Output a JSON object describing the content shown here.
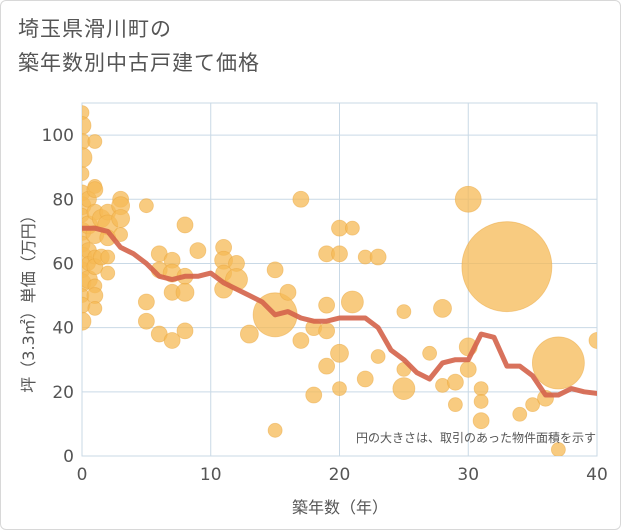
{
  "title_lines": [
    "埼玉県滑川町の",
    "築年数別中古戸建て価格"
  ],
  "chart_data": {
    "type": "scatter",
    "xlabel": "築年数（年）",
    "ylabel": "坪（3.3㎡）単価（万円）",
    "xlim": [
      0,
      40
    ],
    "ylim": [
      0,
      110
    ],
    "xticks": [
      0,
      10,
      20,
      30,
      40
    ],
    "yticks": [
      0,
      20,
      40,
      60,
      80,
      100
    ],
    "grid": true,
    "annotation": "円の大きさは、取引のあった物件面積を示す",
    "colors": {
      "bubble": "#f5b955",
      "line": "#d4634a",
      "grid": "#c9d9e6",
      "axis_text": "#555555"
    },
    "scatter_points": [
      {
        "x": 0,
        "y": 107,
        "r": 7
      },
      {
        "x": 0,
        "y": 103,
        "r": 9
      },
      {
        "x": 0,
        "y": 98,
        "r": 8
      },
      {
        "x": 0,
        "y": 93,
        "r": 10
      },
      {
        "x": 0,
        "y": 88,
        "r": 7
      },
      {
        "x": 0,
        "y": 82,
        "r": 8
      },
      {
        "x": 0,
        "y": 78,
        "r": 9
      },
      {
        "x": 0,
        "y": 75,
        "r": 7
      },
      {
        "x": 0,
        "y": 70,
        "r": 9
      },
      {
        "x": 0,
        "y": 66,
        "r": 8
      },
      {
        "x": 0,
        "y": 62,
        "r": 10
      },
      {
        "x": 0,
        "y": 58,
        "r": 8
      },
      {
        "x": 0,
        "y": 54,
        "r": 9
      },
      {
        "x": 0,
        "y": 50,
        "r": 7
      },
      {
        "x": 0,
        "y": 47,
        "r": 8
      },
      {
        "x": 0,
        "y": 42,
        "r": 9
      },
      {
        "x": 0.5,
        "y": 80,
        "r": 8
      },
      {
        "x": 0.5,
        "y": 72,
        "r": 9
      },
      {
        "x": 0.5,
        "y": 64,
        "r": 8
      },
      {
        "x": 0.5,
        "y": 60,
        "r": 7
      },
      {
        "x": 0.5,
        "y": 55,
        "r": 9
      },
      {
        "x": 1,
        "y": 98,
        "r": 7
      },
      {
        "x": 1,
        "y": 84,
        "r": 7
      },
      {
        "x": 1,
        "y": 83,
        "r": 8
      },
      {
        "x": 1,
        "y": 76,
        "r": 8
      },
      {
        "x": 1,
        "y": 69,
        "r": 9
      },
      {
        "x": 1,
        "y": 62,
        "r": 7
      },
      {
        "x": 1,
        "y": 59,
        "r": 8
      },
      {
        "x": 1,
        "y": 53,
        "r": 7
      },
      {
        "x": 1,
        "y": 50,
        "r": 8
      },
      {
        "x": 1,
        "y": 46,
        "r": 7
      },
      {
        "x": 1.5,
        "y": 74,
        "r": 9
      },
      {
        "x": 1.5,
        "y": 62,
        "r": 8
      },
      {
        "x": 2,
        "y": 76,
        "r": 8
      },
      {
        "x": 2,
        "y": 72,
        "r": 10
      },
      {
        "x": 2,
        "y": 68,
        "r": 8
      },
      {
        "x": 2,
        "y": 62,
        "r": 7
      },
      {
        "x": 2,
        "y": 57,
        "r": 7
      },
      {
        "x": 3,
        "y": 80,
        "r": 8
      },
      {
        "x": 3,
        "y": 78,
        "r": 9
      },
      {
        "x": 3,
        "y": 74,
        "r": 9
      },
      {
        "x": 3,
        "y": 69,
        "r": 7
      },
      {
        "x": 5,
        "y": 78,
        "r": 7
      },
      {
        "x": 5,
        "y": 48,
        "r": 8
      },
      {
        "x": 5,
        "y": 42,
        "r": 8
      },
      {
        "x": 6,
        "y": 63,
        "r": 8
      },
      {
        "x": 6,
        "y": 58,
        "r": 8
      },
      {
        "x": 6,
        "y": 38,
        "r": 8
      },
      {
        "x": 7,
        "y": 61,
        "r": 8
      },
      {
        "x": 7,
        "y": 57,
        "r": 9
      },
      {
        "x": 7,
        "y": 51,
        "r": 8
      },
      {
        "x": 7,
        "y": 36,
        "r": 8
      },
      {
        "x": 8,
        "y": 72,
        "r": 8
      },
      {
        "x": 8,
        "y": 56,
        "r": 8
      },
      {
        "x": 8,
        "y": 51,
        "r": 9
      },
      {
        "x": 8,
        "y": 39,
        "r": 8
      },
      {
        "x": 9,
        "y": 64,
        "r": 8
      },
      {
        "x": 11,
        "y": 65,
        "r": 8
      },
      {
        "x": 11,
        "y": 61,
        "r": 9
      },
      {
        "x": 11,
        "y": 57,
        "r": 8
      },
      {
        "x": 11,
        "y": 52,
        "r": 9
      },
      {
        "x": 12,
        "y": 60,
        "r": 8
      },
      {
        "x": 12,
        "y": 55,
        "r": 11
      },
      {
        "x": 13,
        "y": 38,
        "r": 9
      },
      {
        "x": 15,
        "y": 58,
        "r": 8
      },
      {
        "x": 15,
        "y": 44,
        "r": 22
      },
      {
        "x": 15,
        "y": 8,
        "r": 7
      },
      {
        "x": 16,
        "y": 51,
        "r": 8
      },
      {
        "x": 17,
        "y": 80,
        "r": 8
      },
      {
        "x": 17,
        "y": 36,
        "r": 8
      },
      {
        "x": 18,
        "y": 40,
        "r": 8
      },
      {
        "x": 18,
        "y": 19,
        "r": 8
      },
      {
        "x": 19,
        "y": 63,
        "r": 8
      },
      {
        "x": 19,
        "y": 47,
        "r": 8
      },
      {
        "x": 19,
        "y": 39,
        "r": 8
      },
      {
        "x": 19,
        "y": 28,
        "r": 8
      },
      {
        "x": 20,
        "y": 71,
        "r": 8
      },
      {
        "x": 20,
        "y": 63,
        "r": 8
      },
      {
        "x": 20,
        "y": 32,
        "r": 9
      },
      {
        "x": 20,
        "y": 21,
        "r": 7
      },
      {
        "x": 21,
        "y": 71,
        "r": 7
      },
      {
        "x": 21,
        "y": 48,
        "r": 11
      },
      {
        "x": 22,
        "y": 62,
        "r": 7
      },
      {
        "x": 22,
        "y": 24,
        "r": 8
      },
      {
        "x": 23,
        "y": 62,
        "r": 8
      },
      {
        "x": 23,
        "y": 31,
        "r": 7
      },
      {
        "x": 25,
        "y": 45,
        "r": 7
      },
      {
        "x": 25,
        "y": 27,
        "r": 7
      },
      {
        "x": 25,
        "y": 21,
        "r": 11
      },
      {
        "x": 27,
        "y": 32,
        "r": 7
      },
      {
        "x": 28,
        "y": 46,
        "r": 9
      },
      {
        "x": 28,
        "y": 22,
        "r": 7
      },
      {
        "x": 29,
        "y": 16,
        "r": 7
      },
      {
        "x": 29,
        "y": 23,
        "r": 8
      },
      {
        "x": 30,
        "y": 80,
        "r": 13
      },
      {
        "x": 30,
        "y": 34,
        "r": 9
      },
      {
        "x": 30,
        "y": 27,
        "r": 8
      },
      {
        "x": 31,
        "y": 21,
        "r": 7
      },
      {
        "x": 31,
        "y": 17,
        "r": 7
      },
      {
        "x": 31,
        "y": 11,
        "r": 8
      },
      {
        "x": 33,
        "y": 59,
        "r": 45
      },
      {
        "x": 34,
        "y": 13,
        "r": 7
      },
      {
        "x": 35,
        "y": 16,
        "r": 7
      },
      {
        "x": 36,
        "y": 18,
        "r": 8
      },
      {
        "x": 37,
        "y": 29,
        "r": 26
      },
      {
        "x": 37,
        "y": 2,
        "r": 7
      },
      {
        "x": 40,
        "y": 36,
        "r": 8
      }
    ],
    "series": [
      {
        "x": [
          0,
          1,
          2,
          3,
          4,
          5,
          6,
          7,
          8,
          9,
          10,
          11,
          12,
          13,
          14,
          15,
          16,
          17,
          18,
          19,
          20,
          21,
          22,
          23,
          24,
          25,
          26,
          27,
          28,
          29,
          30,
          31,
          32,
          33,
          34,
          35,
          36,
          37,
          38,
          39,
          40
        ],
        "values": [
          71,
          71,
          70,
          65,
          63,
          60,
          56,
          55,
          56,
          56,
          57,
          54,
          52,
          50,
          48,
          44,
          45,
          43,
          42,
          42,
          43,
          43,
          43,
          40,
          33,
          30,
          26,
          24,
          29,
          30,
          30,
          38,
          37,
          28,
          28,
          25,
          19,
          19,
          21,
          20,
          19.5
        ]
      }
    ]
  }
}
